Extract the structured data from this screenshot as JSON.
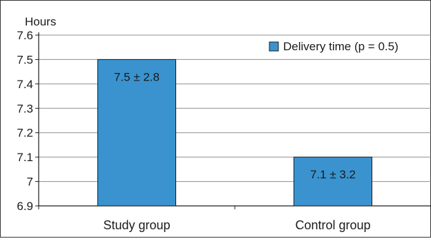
{
  "chart_data": {
    "type": "bar",
    "ylabel": "Hours",
    "xlabel": "",
    "title": "",
    "categories": [
      "Study group",
      "Control group"
    ],
    "series": [
      {
        "name": "Delivery time (p = 0.5)",
        "values": [
          7.5,
          7.1
        ],
        "labels": [
          "7.5 ± 2.8",
          "7.1 ± 3.2"
        ],
        "color": "#3a93cf"
      }
    ],
    "ylim": [
      6.9,
      7.6
    ],
    "yticks": [
      "6.9",
      "7",
      "7.1",
      "7.2",
      "7.3",
      "7.4",
      "7.5",
      "7.6"
    ],
    "grid": true,
    "legend_position": "top-right"
  }
}
